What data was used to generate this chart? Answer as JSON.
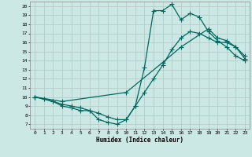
{
  "xlabel": "Humidex (Indice chaleur)",
  "bg_color": "#cce8e4",
  "grid_color": "#b0c8c4",
  "line_color": "#006860",
  "xlim": [
    -0.5,
    23.5
  ],
  "ylim": [
    6.5,
    20.5
  ],
  "xticks": [
    0,
    1,
    2,
    3,
    4,
    5,
    6,
    7,
    8,
    9,
    10,
    11,
    12,
    13,
    14,
    15,
    16,
    17,
    18,
    19,
    20,
    21,
    22,
    23
  ],
  "yticks": [
    7,
    8,
    9,
    10,
    11,
    12,
    13,
    14,
    15,
    16,
    17,
    18,
    19,
    20
  ],
  "line1_x": [
    0,
    1,
    2,
    3,
    4,
    5,
    6,
    7,
    8,
    9,
    10,
    11,
    12,
    13,
    14,
    15,
    16,
    17,
    18,
    19,
    20,
    21,
    22,
    23
  ],
  "line1_y": [
    10,
    9.8,
    9.5,
    9.0,
    8.8,
    8.5,
    8.5,
    7.5,
    7.2,
    7.0,
    7.5,
    9.0,
    13.2,
    19.5,
    19.5,
    20.2,
    18.5,
    19.2,
    18.8,
    17.2,
    16.2,
    15.5,
    14.5,
    14.0
  ],
  "line2_x": [
    0,
    2,
    3,
    4,
    5,
    6,
    7,
    8,
    9,
    10,
    11,
    12,
    13,
    14,
    15,
    16,
    17,
    18,
    19,
    20,
    21,
    22,
    23
  ],
  "line2_y": [
    10,
    9.5,
    9.2,
    9.0,
    8.8,
    8.5,
    8.2,
    7.8,
    7.5,
    7.5,
    9.0,
    10.5,
    12.0,
    13.5,
    15.2,
    16.5,
    17.2,
    17.0,
    16.5,
    16.0,
    16.0,
    15.5,
    14.5
  ],
  "line3_x": [
    0,
    3,
    10,
    14,
    16,
    19,
    20,
    21,
    22,
    23
  ],
  "line3_y": [
    10,
    9.5,
    10.5,
    13.8,
    15.5,
    17.5,
    16.5,
    16.2,
    15.5,
    14.2
  ],
  "marker": "+",
  "markersize": 4,
  "linewidth": 0.9
}
